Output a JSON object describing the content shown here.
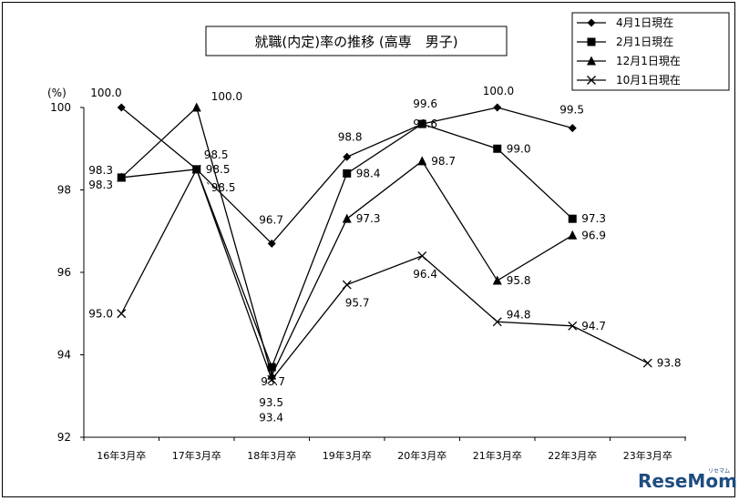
{
  "watermark": {
    "text": "ReseMom",
    "small": "リセマム"
  },
  "chart_data": {
    "type": "line",
    "title": "就職(内定)率の推移 (高専　男子)",
    "unit_label": "(%)",
    "xlabel": "",
    "ylabel": "",
    "ylim": [
      92,
      100
    ],
    "yticks": [
      92,
      94,
      96,
      98,
      100
    ],
    "ytick_labels": [
      "92",
      "94",
      "96",
      "98",
      "100"
    ],
    "categories": [
      "16年3月卒",
      "17年3月卒",
      "18年3月卒",
      "19年3月卒",
      "20年3月卒",
      "21年3月卒",
      "22年3月卒",
      "23年3月卒"
    ],
    "grid": false,
    "legend_position": "top-right",
    "series": [
      {
        "name": "4月1日現在",
        "marker": "diamond",
        "values": [
          100.0,
          98.5,
          96.7,
          98.8,
          99.6,
          100.0,
          99.5,
          null
        ],
        "labels": [
          "100.0",
          "98.5",
          "96.7",
          "98.8",
          "99.6",
          "100.0",
          "99.5",
          ""
        ]
      },
      {
        "name": "2月1日現在",
        "marker": "square",
        "values": [
          98.3,
          98.5,
          93.7,
          98.4,
          99.6,
          99.0,
          97.3,
          null
        ],
        "labels": [
          "98.3",
          "98.5",
          "93.7",
          "98.4",
          "99.6",
          "99.0",
          "97.3",
          ""
        ]
      },
      {
        "name": "12月1日現在",
        "marker": "triangle",
        "values": [
          98.3,
          100.0,
          93.5,
          97.3,
          98.7,
          95.8,
          96.9,
          null
        ],
        "labels": [
          "98.3",
          "100.0",
          "93.5",
          "97.3",
          "98.7",
          "95.8",
          "96.9",
          ""
        ]
      },
      {
        "name": "10月1日現在",
        "marker": "x",
        "values": [
          95.0,
          98.5,
          93.4,
          95.7,
          96.4,
          94.8,
          94.7,
          93.8
        ],
        "labels": [
          "95.0",
          "`98.5",
          "93.4",
          "95.7",
          "96.4",
          "94.8",
          "94.7",
          "93.8"
        ]
      }
    ]
  }
}
